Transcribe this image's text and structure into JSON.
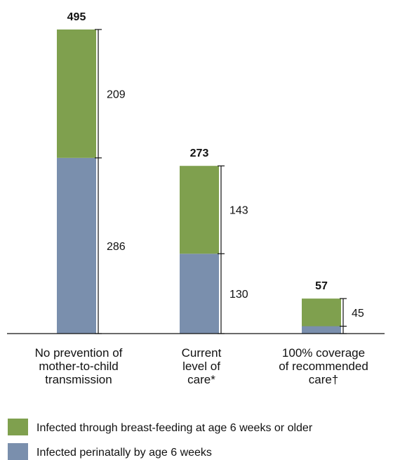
{
  "chart_data": {
    "type": "bar",
    "stacked": true,
    "categories": [
      [
        "No prevention of",
        "mother-to-child",
        "transmission"
      ],
      [
        "Current",
        "level of",
        "care*"
      ],
      [
        "100% coverage",
        "of recommended",
        "care†"
      ]
    ],
    "series": [
      {
        "name": "Infected perinatally by age 6 weeks",
        "color": "#7a8fad",
        "values": [
          286,
          130,
          12
        ]
      },
      {
        "name": "Infected through breast-feeding at age 6 weeks or older",
        "color": "#7fa04e",
        "values": [
          209,
          143,
          45
        ]
      }
    ],
    "segment_labels": [
      [
        "286",
        "209"
      ],
      [
        "130",
        "143"
      ],
      [
        "",
        "45"
      ]
    ],
    "totals": [
      "495",
      "273",
      "57"
    ],
    "ylim": [
      0,
      495
    ],
    "legend_order": [
      1,
      0
    ],
    "legend_position": "bottom-left",
    "grid": false
  }
}
